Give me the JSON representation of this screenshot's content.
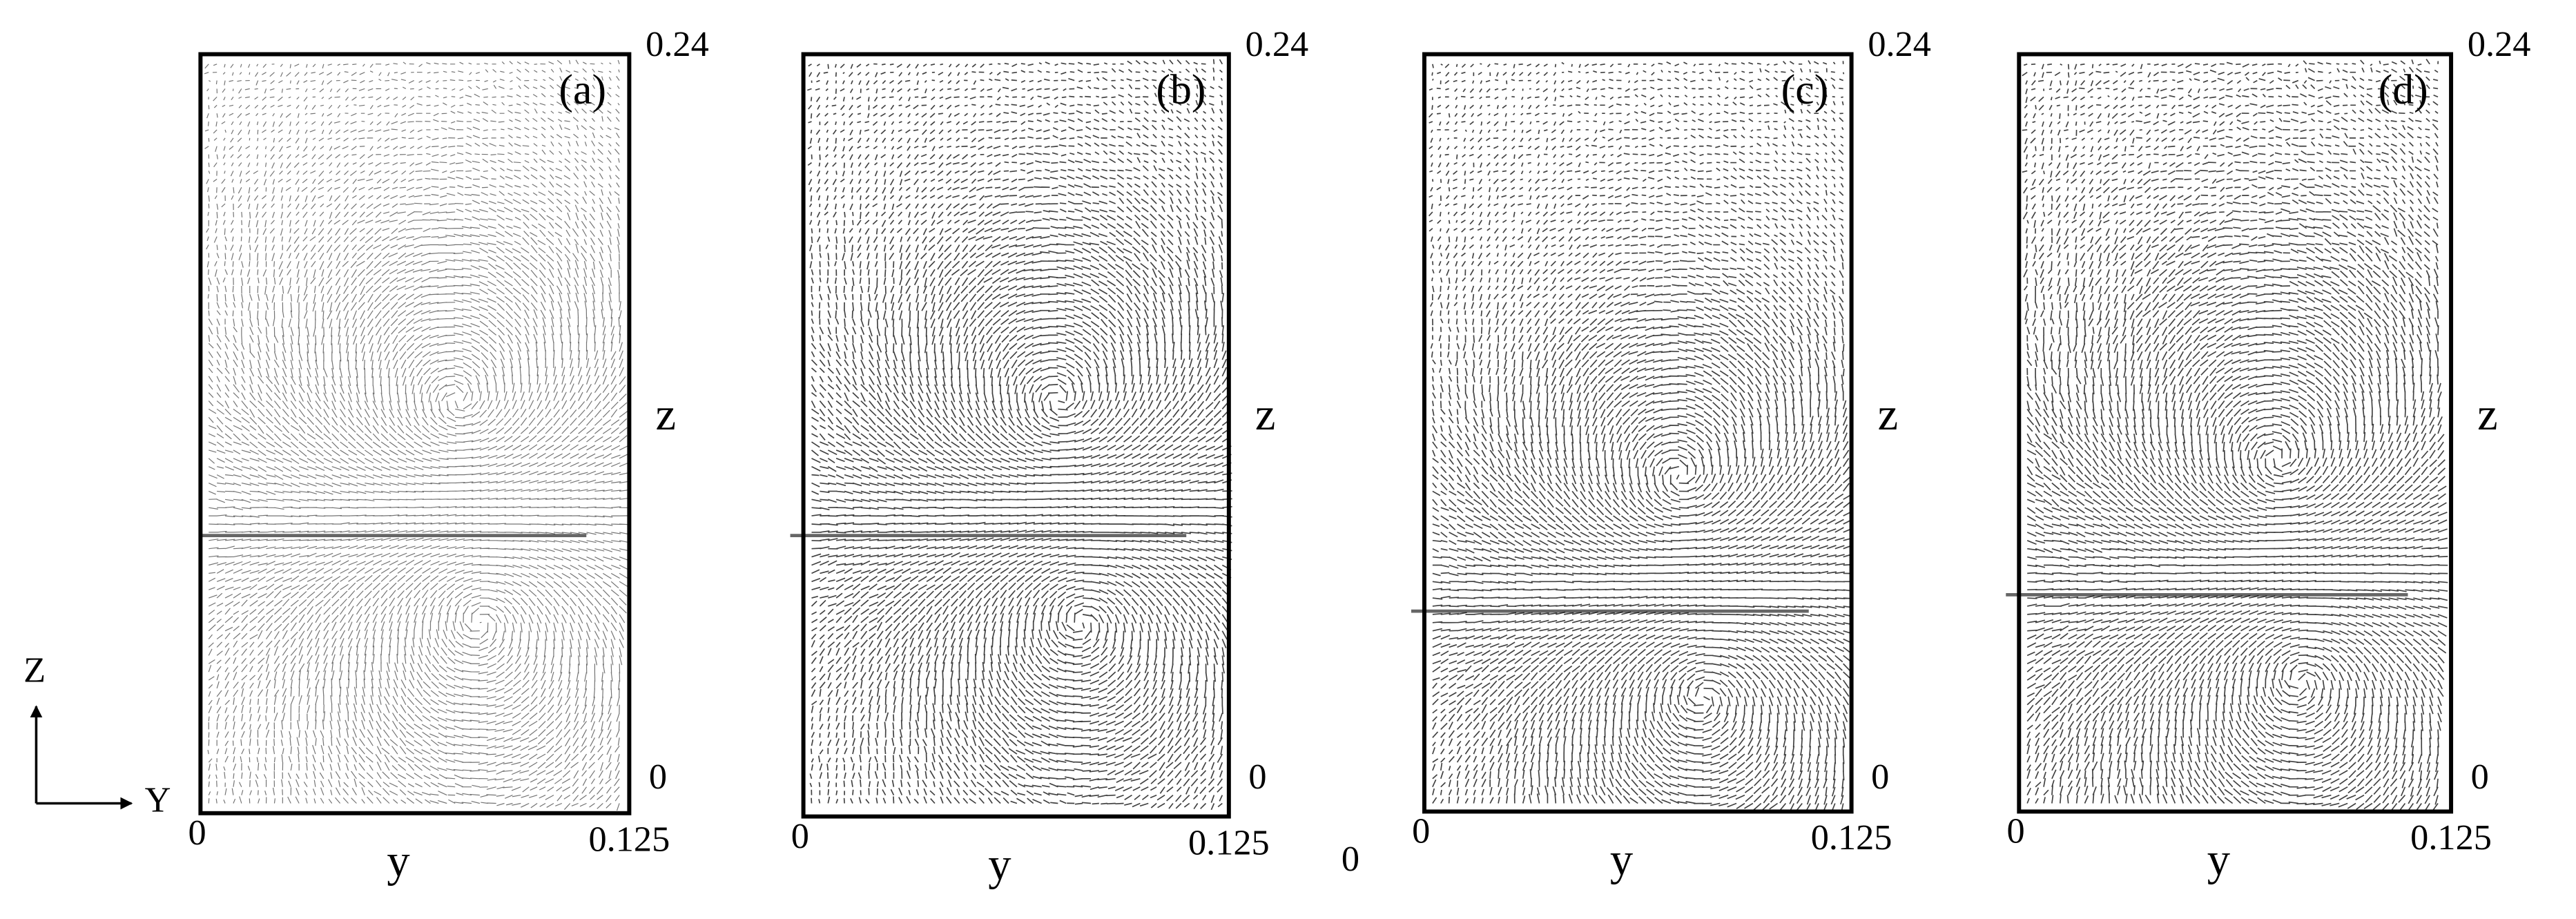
{
  "panels": [
    {
      "label": "(a)",
      "z_max": "0.24",
      "z_axis": "z",
      "z_min": "0",
      "y_min": "0",
      "y_max": "0.125",
      "y_axis": "y"
    },
    {
      "label": "(b)",
      "z_max": "0.24",
      "z_axis": "z",
      "z_min": "0",
      "y_min": "0",
      "y_max": "0.125",
      "y_axis": "y"
    },
    {
      "label": "(c)",
      "z_max": "0.24",
      "z_axis": "z",
      "z_min": "0",
      "y_min": "0",
      "y_max": "0.125",
      "y_axis": "y"
    },
    {
      "label": "(d)",
      "z_max": "0.24",
      "z_axis": "z",
      "z_min": "0",
      "y_min": "0",
      "y_max": "0.125",
      "y_axis": "y"
    }
  ],
  "axes_indicator": {
    "vertical": "Z",
    "horizontal": "Y"
  },
  "stray_label": "0"
}
